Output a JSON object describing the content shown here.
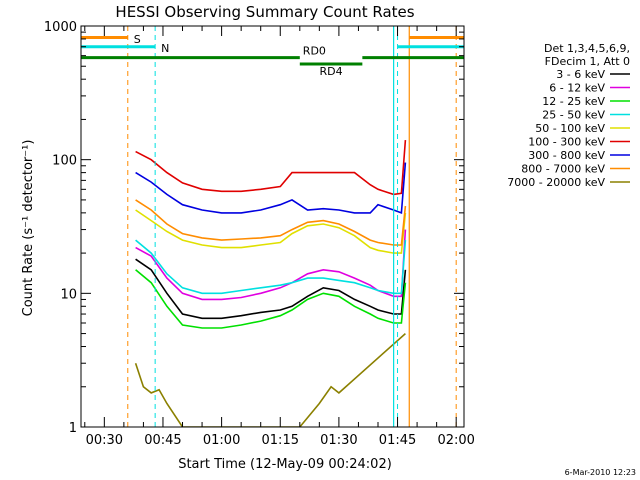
{
  "chart_data": {
    "type": "line",
    "title": "HESSI Observing Summary Count Rates",
    "xlabel": "Start Time (12-May-09 00:24:02)",
    "ylabel": "Count Rate (s⁻¹ detector⁻¹)",
    "ylog": true,
    "xlim": [
      "00:24:02",
      "02:02:00"
    ],
    "ylim": [
      1,
      1000
    ],
    "x_ticks": [
      "00:30",
      "00:45",
      "01:00",
      "01:15",
      "01:30",
      "01:45",
      "02:00"
    ],
    "y_ticks": [
      "1",
      "10",
      "100",
      "1000"
    ],
    "legend_header": [
      "Det 1,3,4,5,6,9,",
      "FDecim 1, Att 0"
    ],
    "legend_position": "right",
    "series": [
      {
        "name": "3 - 6 keV",
        "color": "#000000",
        "x": [
          "00:38",
          "00:42",
          "00:46",
          "00:50",
          "00:55",
          "01:00",
          "01:05",
          "01:10",
          "01:15",
          "01:18",
          "01:22",
          "01:26",
          "01:30",
          "01:34",
          "01:38",
          "01:40",
          "01:44",
          "01:46",
          "01:47"
        ],
        "y": [
          18,
          15,
          10,
          7,
          6.5,
          6.5,
          6.8,
          7.2,
          7.5,
          8.0,
          9.5,
          11,
          10.5,
          9.0,
          8.0,
          7.5,
          7.0,
          7.0,
          15
        ]
      },
      {
        "name": "6 - 12 keV",
        "color": "#e000e0",
        "x": [
          "00:38",
          "00:42",
          "00:46",
          "00:50",
          "00:55",
          "01:00",
          "01:05",
          "01:10",
          "01:15",
          "01:18",
          "01:22",
          "01:26",
          "01:30",
          "01:34",
          "01:38",
          "01:40",
          "01:44",
          "01:46",
          "01:47"
        ],
        "y": [
          22,
          19,
          13,
          10,
          9.0,
          9.0,
          9.3,
          10,
          11,
          12,
          14,
          15,
          14.5,
          13,
          11.5,
          10.5,
          9.5,
          9.5,
          30
        ]
      },
      {
        "name": "12 - 25 keV",
        "color": "#00e000",
        "x": [
          "00:38",
          "00:42",
          "00:46",
          "00:50",
          "00:55",
          "01:00",
          "01:05",
          "01:10",
          "01:15",
          "01:18",
          "01:22",
          "01:26",
          "01:30",
          "01:34",
          "01:38",
          "01:40",
          "01:44",
          "01:46",
          "01:47"
        ],
        "y": [
          15,
          12,
          8,
          5.8,
          5.5,
          5.5,
          5.8,
          6.2,
          6.8,
          7.5,
          9.0,
          10,
          9.5,
          8.0,
          7.0,
          6.5,
          6.0,
          6.0,
          12
        ]
      },
      {
        "name": "25 - 50 keV",
        "color": "#00e0e0",
        "x": [
          "00:38",
          "00:42",
          "00:46",
          "00:50",
          "00:55",
          "01:00",
          "01:05",
          "01:10",
          "01:15",
          "01:18",
          "01:22",
          "01:26",
          "01:30",
          "01:34",
          "01:38",
          "01:40",
          "01:44",
          "01:46",
          "01:47"
        ],
        "y": [
          25,
          20,
          14,
          11,
          10,
          10,
          10.5,
          11,
          11.5,
          12,
          13,
          13,
          12.5,
          12,
          11,
          10.5,
          10,
          10,
          25
        ]
      },
      {
        "name": "50 - 100 keV",
        "color": "#e0e000",
        "x": [
          "00:38",
          "00:42",
          "00:46",
          "00:50",
          "00:55",
          "01:00",
          "01:05",
          "01:10",
          "01:15",
          "01:18",
          "01:22",
          "01:26",
          "01:30",
          "01:34",
          "01:38",
          "01:40",
          "01:44",
          "01:46",
          "01:47"
        ],
        "y": [
          42,
          35,
          29,
          25,
          23,
          22,
          22,
          23,
          24,
          28,
          32,
          33,
          31,
          27,
          22,
          21,
          20,
          20,
          40
        ]
      },
      {
        "name": "100 - 300 keV",
        "color": "#e00000",
        "x": [
          "00:38",
          "00:42",
          "00:46",
          "00:50",
          "00:55",
          "01:00",
          "01:05",
          "01:10",
          "01:15",
          "01:18",
          "01:22",
          "01:26",
          "01:30",
          "01:34",
          "01:38",
          "01:40",
          "01:44",
          "01:46",
          "01:47"
        ],
        "y": [
          115,
          100,
          80,
          67,
          60,
          58,
          58,
          60,
          63,
          80,
          80,
          80,
          80,
          80,
          65,
          60,
          55,
          56,
          140
        ]
      },
      {
        "name": "300 - 800 keV",
        "color": "#0000e0",
        "x": [
          "00:38",
          "00:42",
          "00:46",
          "00:50",
          "00:55",
          "01:00",
          "01:05",
          "01:10",
          "01:15",
          "01:18",
          "01:22",
          "01:26",
          "01:30",
          "01:34",
          "01:38",
          "01:40",
          "01:44",
          "01:46",
          "01:47"
        ],
        "y": [
          80,
          68,
          55,
          46,
          42,
          40,
          40,
          42,
          46,
          50,
          42,
          43,
          42,
          40,
          40,
          46,
          42,
          40,
          95
        ]
      },
      {
        "name": "800 - 7000 keV",
        "color": "#ff8c00",
        "x": [
          "00:38",
          "00:42",
          "00:46",
          "00:50",
          "00:55",
          "01:00",
          "01:05",
          "01:10",
          "01:15",
          "01:18",
          "01:22",
          "01:26",
          "01:30",
          "01:34",
          "01:38",
          "01:40",
          "01:44",
          "01:46",
          "01:47"
        ],
        "y": [
          50,
          42,
          33,
          28,
          26,
          25,
          25.5,
          26,
          27,
          30,
          34,
          35,
          33,
          29,
          25,
          24,
          23,
          23,
          45
        ]
      },
      {
        "name": "7000 - 20000 keV",
        "color": "#8b8000",
        "x": [
          "00:38",
          "00:40",
          "00:42",
          "00:44",
          "00:46",
          "00:50",
          "01:20",
          "01:25",
          "01:28",
          "01:30",
          "01:47"
        ],
        "y": [
          3.0,
          2.0,
          1.8,
          1.9,
          1.5,
          1.0,
          1.0,
          1.5,
          2.0,
          1.8,
          5.0
        ]
      }
    ],
    "markers": [
      {
        "label": "S",
        "color": "#ff8c00",
        "style": "dashed",
        "x": [
          "00:36",
          "02:00"
        ]
      },
      {
        "label": "N",
        "color": "#00e0e0",
        "style": "dashed",
        "x": [
          "00:43",
          "01:45"
        ]
      }
    ],
    "solid_lines": [
      {
        "color": "#00e0e0",
        "x": "01:44"
      },
      {
        "color": "#ff8c00",
        "x": "01:48"
      }
    ],
    "bars": [
      {
        "label": "",
        "color": "#ff8c00",
        "level": 820,
        "from": "00:24",
        "to": "00:36"
      },
      {
        "label": "",
        "color": "#ff8c00",
        "level": 820,
        "from": "01:48",
        "to": "02:02"
      },
      {
        "label": "",
        "color": "#00e0e0",
        "level": 700,
        "from": "00:24",
        "to": "00:43"
      },
      {
        "label": "",
        "color": "#00e0e0",
        "level": 700,
        "from": "01:45",
        "to": "02:02"
      },
      {
        "label": "RD0",
        "color": "#008000",
        "level": 580,
        "from": "00:24",
        "to": "01:20"
      },
      {
        "label": "",
        "color": "#008000",
        "level": 580,
        "from": "01:36",
        "to": "02:02"
      },
      {
        "label": "RD4",
        "color": "#008000",
        "level": 520,
        "from": "01:20",
        "to": "01:36"
      }
    ],
    "grid": false
  },
  "timestamp": "6-Mar-2010 12:23"
}
